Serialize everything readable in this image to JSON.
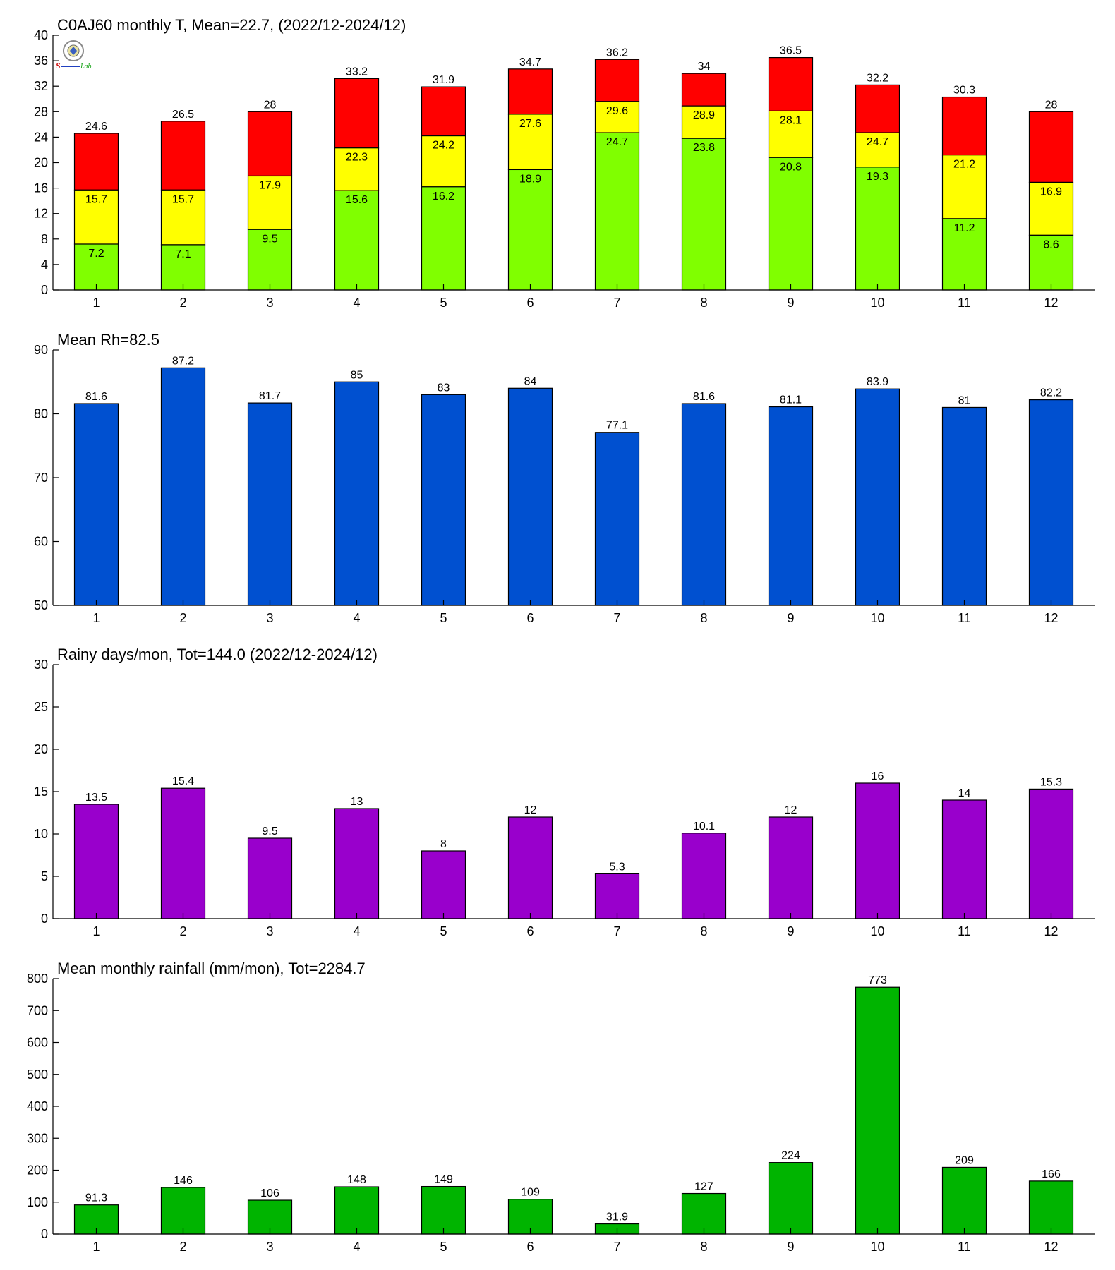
{
  "chart_data": [
    {
      "type": "bar",
      "stacked": true,
      "title": "C0AJ60 monthly T, Mean=22.7, (2022/12-2024/12)",
      "categories": [
        "1",
        "2",
        "3",
        "4",
        "5",
        "6",
        "7",
        "8",
        "9",
        "10",
        "11",
        "12"
      ],
      "ylim": [
        0,
        40
      ],
      "yticks": [
        0,
        4,
        8,
        12,
        16,
        20,
        24,
        28,
        32,
        36,
        40
      ],
      "layers": [
        {
          "color": "#80ff00",
          "values": [
            7.2,
            7.1,
            9.5,
            15.6,
            16.2,
            18.9,
            24.7,
            23.8,
            20.8,
            19.3,
            11.2,
            8.6
          ],
          "labels": [
            "7.2",
            "7.1",
            "9.5",
            "15.6",
            "16.2",
            "18.9",
            "24.7",
            "23.8",
            "20.8",
            "19.3",
            "11.2",
            "8.6"
          ]
        },
        {
          "color": "#ffff00",
          "values": [
            15.7,
            15.7,
            17.9,
            22.3,
            24.2,
            27.6,
            29.6,
            28.9,
            28.1,
            24.7,
            21.2,
            16.9
          ],
          "labels": [
            "15.7",
            "15.7",
            "17.9",
            "22.3",
            "24.2",
            "27.6",
            "29.6",
            "28.9",
            "28.1",
            "24.7",
            "21.2",
            "16.9"
          ]
        },
        {
          "color": "#ff0000",
          "values": [
            24.6,
            26.5,
            28,
            33.2,
            31.9,
            34.7,
            36.2,
            34,
            36.5,
            32.2,
            30.3,
            28
          ],
          "labels": [
            "24.6",
            "26.5",
            "28",
            "33.2",
            "31.9",
            "34.7",
            "36.2",
            "34",
            "36.5",
            "32.2",
            "30.3",
            "28"
          ]
        }
      ]
    },
    {
      "type": "bar",
      "title": "Mean Rh=82.5",
      "categories": [
        "1",
        "2",
        "3",
        "4",
        "5",
        "6",
        "7",
        "8",
        "9",
        "10",
        "11",
        "12"
      ],
      "ylim": [
        50,
        90
      ],
      "yticks": [
        50,
        60,
        70,
        80,
        90
      ],
      "color": "#0050d0",
      "values": [
        81.6,
        87.2,
        81.7,
        85,
        83,
        84,
        77.1,
        81.6,
        81.1,
        83.9,
        81,
        82.2
      ],
      "labels": [
        "81.6",
        "87.2",
        "81.7",
        "85",
        "83",
        "84",
        "77.1",
        "81.6",
        "81.1",
        "83.9",
        "81",
        "82.2"
      ]
    },
    {
      "type": "bar",
      "title": "Rainy days/mon, Tot=144.0 (2022/12-2024/12)",
      "categories": [
        "1",
        "2",
        "3",
        "4",
        "5",
        "6",
        "7",
        "8",
        "9",
        "10",
        "11",
        "12"
      ],
      "ylim": [
        0,
        30
      ],
      "yticks": [
        0,
        5,
        10,
        15,
        20,
        25,
        30
      ],
      "color": "#9900cc",
      "values": [
        13.5,
        15.4,
        9.5,
        13,
        8,
        12,
        5.3,
        10.1,
        12,
        16,
        14,
        15.3
      ],
      "labels": [
        "13.5",
        "15.4",
        "9.5",
        "13",
        "8",
        "12",
        "5.3",
        "10.1",
        "12",
        "16",
        "14",
        "15.3"
      ]
    },
    {
      "type": "bar",
      "title": "Mean monthly rainfall (mm/mon), Tot=2284.7",
      "categories": [
        "1",
        "2",
        "3",
        "4",
        "5",
        "6",
        "7",
        "8",
        "9",
        "10",
        "11",
        "12"
      ],
      "ylim": [
        0,
        800
      ],
      "yticks": [
        0,
        100,
        200,
        300,
        400,
        500,
        600,
        700,
        800
      ],
      "color": "#00b400",
      "values": [
        91.3,
        146,
        106,
        148,
        149,
        109,
        31.9,
        127,
        224,
        773,
        209,
        166
      ],
      "labels": [
        "91.3",
        "146",
        "106",
        "148",
        "149",
        "109",
        "31.9",
        "127",
        "224",
        "773",
        "209",
        "166"
      ]
    }
  ],
  "logo": {
    "name": "lab-logo",
    "text_left": "S",
    "text_right": "Lab."
  }
}
